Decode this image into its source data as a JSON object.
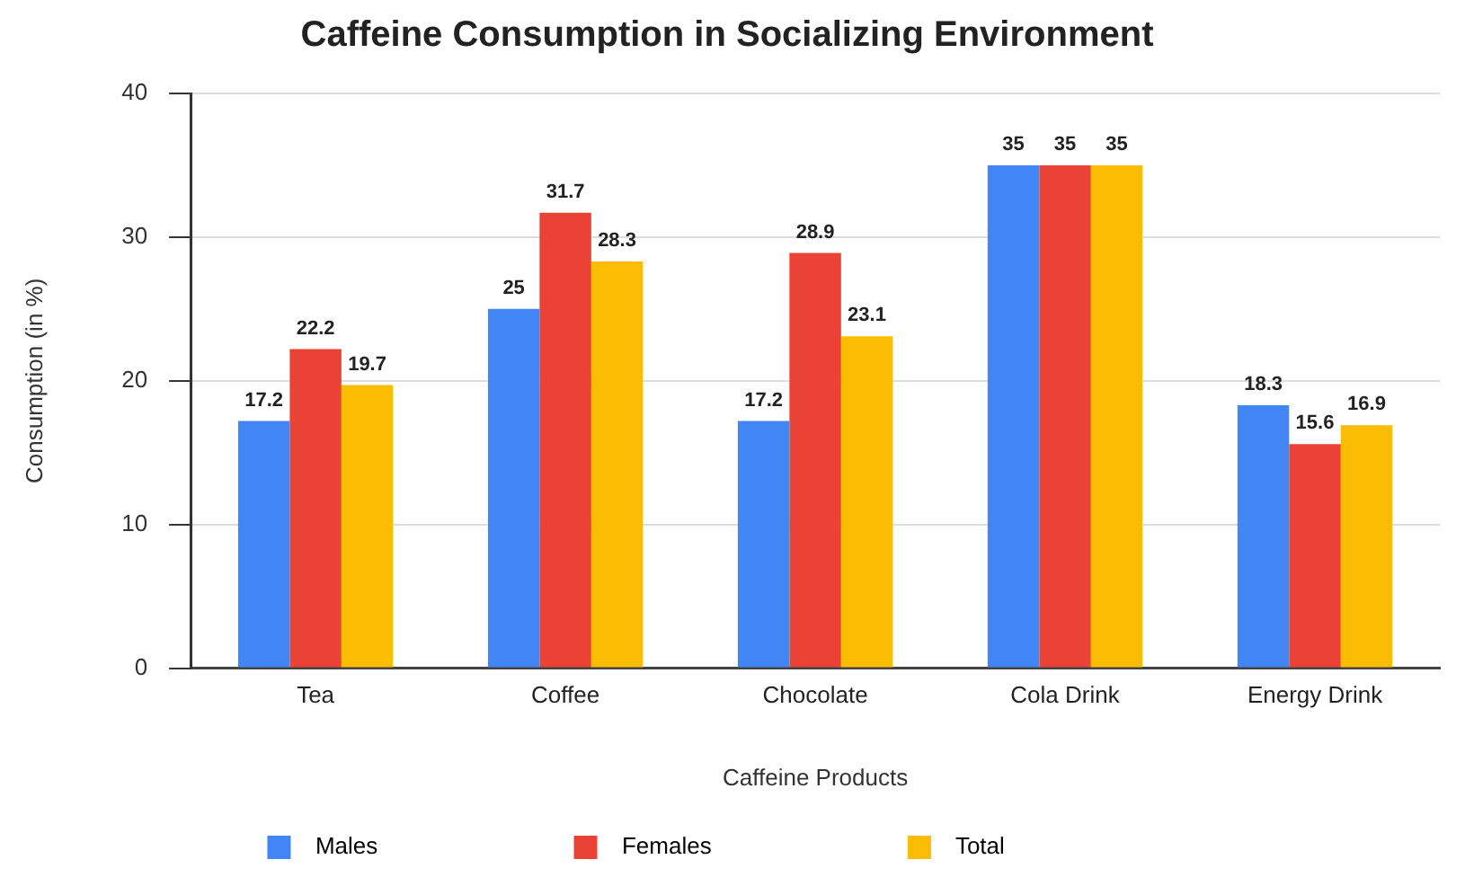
{
  "chart_data": {
    "type": "bar",
    "title": "Caffeine Consumption in Socializing Environment",
    "xlabel": "Caffeine Products",
    "ylabel": "Consumption (in %)",
    "categories": [
      "Tea",
      "Coffee",
      "Chocolate",
      "Cola Drink",
      "Energy Drink"
    ],
    "series": [
      {
        "name": "Males",
        "color": "#4285f4",
        "values": [
          17.2,
          25,
          17.2,
          35,
          18.3
        ]
      },
      {
        "name": "Females",
        "color": "#ea4335",
        "values": [
          22.2,
          31.7,
          28.9,
          35,
          15.6
        ]
      },
      {
        "name": "Total",
        "color": "#fbbc04",
        "values": [
          19.7,
          28.3,
          23.1,
          35,
          16.9
        ]
      }
    ],
    "ylim": [
      0,
      40
    ],
    "yticks": [
      0,
      10,
      20,
      30,
      40
    ],
    "grid": "y",
    "legend": "bottom",
    "data_labels": true
  }
}
